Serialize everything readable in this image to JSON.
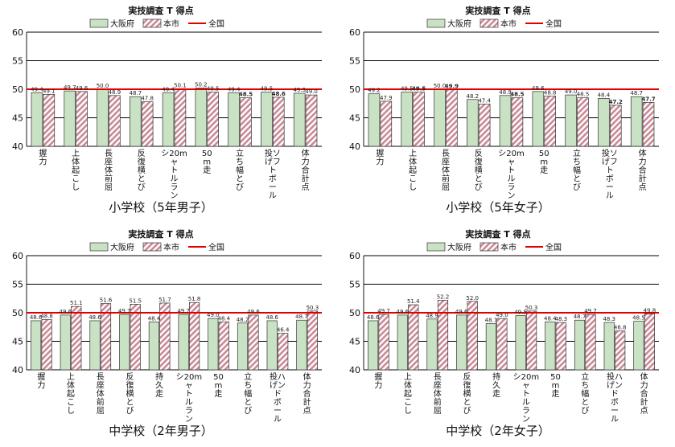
{
  "colors": {
    "osaka": "#c9e2c4",
    "city_stripe_a": "#c98a96",
    "city_stripe_b": "#ffffff",
    "national": "#e00000"
  },
  "legend": {
    "osaka": "大阪府",
    "city": "本市",
    "national": "全国"
  },
  "chart_data": [
    {
      "type": "bar",
      "title": "実技調査 T 得点",
      "caption": "小学校（5年男子）",
      "categories": [
        "握力",
        "上体起こし",
        "長座体前屈",
        "反復横とび",
        "20mシャトルラン",
        "50m走",
        "立ち幅とび",
        "ソフトボール投げ",
        "体力合計点"
      ],
      "cat_lines": [
        [
          "握",
          "力"
        ],
        [
          "上",
          "体",
          "起",
          "こ",
          "し"
        ],
        [
          "長",
          "座",
          "体",
          "前",
          "屈"
        ],
        [
          "反",
          "復",
          "横",
          "と",
          "び"
        ],
        [
          "シ20m",
          "ャ",
          "ト",
          "ル",
          "ラ",
          "ン"
        ],
        [
          "50",
          "m",
          "走"
        ],
        [
          "立",
          "ち",
          "幅",
          "と",
          "び"
        ],
        [
          "投ソ",
          "げフ",
          "ト",
          "ボ",
          "ー",
          "ル"
        ],
        [
          "体",
          "力",
          "合",
          "計",
          "点"
        ]
      ],
      "series": [
        {
          "name": "大阪府",
          "values": [
            49.4,
            49.7,
            50.0,
            48.7,
            49.4,
            50.2,
            49.4,
            49.5,
            49.3
          ]
        },
        {
          "name": "本市",
          "values": [
            49.1,
            49.6,
            48.9,
            47.8,
            50.1,
            49.5,
            48.5,
            48.6,
            49.0
          ]
        }
      ],
      "labels_osaka": [
        "49.4",
        "49.7",
        "50.0",
        "48.7",
        "49.4",
        "50.2",
        "49.4",
        "49.5",
        "49.3"
      ],
      "labels_city": [
        "49.1",
        "49.6",
        "48.9",
        "47.8",
        "50.1",
        "49.5",
        "48.5",
        "48.6",
        "49.0"
      ],
      "bold_city": [
        false,
        false,
        false,
        false,
        false,
        false,
        true,
        true,
        false
      ],
      "national": 50,
      "ylim": [
        40,
        60
      ],
      "yticks": [
        "40",
        "45",
        "50",
        "55",
        "60"
      ]
    },
    {
      "type": "bar",
      "title": "実技調査 T 得点",
      "caption": "小学校（5年女子）",
      "categories": [
        "握力",
        "上体起こし",
        "長座体前屈",
        "反復横とび",
        "20mシャトルラン",
        "50m走",
        "立ち幅とび",
        "ソフトボール投げ",
        "体力合計点"
      ],
      "cat_lines": [
        [
          "握",
          "力"
        ],
        [
          "上",
          "体",
          "起",
          "こ",
          "し"
        ],
        [
          "長",
          "座",
          "体",
          "前",
          "屈"
        ],
        [
          "反",
          "復",
          "横",
          "と",
          "び"
        ],
        [
          "シ20m",
          "ャ",
          "ト",
          "ル",
          "ラ",
          "ン"
        ],
        [
          "50",
          "m",
          "走"
        ],
        [
          "立",
          "ち",
          "幅",
          "と",
          "び"
        ],
        [
          "投ソ",
          "げフ",
          "ト",
          "ボ",
          "ー",
          "ル"
        ],
        [
          "体",
          "力",
          "合",
          "計",
          "点"
        ]
      ],
      "series": [
        {
          "name": "大阪府",
          "values": [
            49.2,
            49.5,
            50.0,
            48.2,
            48.9,
            49.6,
            49.0,
            48.4,
            48.7
          ]
        },
        {
          "name": "本市",
          "values": [
            47.9,
            49.5,
            49.9,
            47.4,
            48.5,
            48.8,
            48.5,
            47.2,
            47.7
          ]
        }
      ],
      "labels_osaka": [
        "49.2",
        "49.5",
        "50.0",
        "48.2",
        "48.9",
        "49.6",
        "49.0",
        "48.4",
        "48.7"
      ],
      "labels_city": [
        "47.9",
        "49.5",
        "49.9",
        "47.4",
        "48.5",
        "48.8",
        "48.5",
        "47.2",
        "47.7"
      ],
      "bold_city": [
        false,
        true,
        true,
        false,
        true,
        false,
        false,
        true,
        true
      ],
      "national": 50,
      "ylim": [
        40,
        60
      ],
      "yticks": [
        "40",
        "45",
        "50",
        "55",
        "60"
      ]
    },
    {
      "type": "bar",
      "title": "実技調査 T 得点",
      "caption": "中学校（2年男子）",
      "categories": [
        "握力",
        "上体起こし",
        "長座体前屈",
        "反復横とび",
        "持久走",
        "20mシャトルラン",
        "50m走",
        "立ち幅とび",
        "ハンドボール投げ",
        "体力合計点"
      ],
      "cat_lines": [
        [
          "握",
          "力"
        ],
        [
          "上",
          "体",
          "起",
          "こ",
          "し"
        ],
        [
          "長",
          "座",
          "体",
          "前",
          "屈"
        ],
        [
          "反",
          "復",
          "横",
          "と",
          "び"
        ],
        [
          "持",
          "久",
          "走"
        ],
        [
          "シ20m",
          "ャ",
          "ト",
          "ル",
          "ラ",
          "ン"
        ],
        [
          "50",
          "m",
          "走"
        ],
        [
          "立",
          "ち",
          "幅",
          "と",
          "び"
        ],
        [
          "投ハ",
          "げン",
          "ド",
          "ボ",
          "ー",
          "ル"
        ],
        [
          "体",
          "力",
          "合",
          "計",
          "点"
        ]
      ],
      "series": [
        {
          "name": "大阪府",
          "values": [
            48.6,
            49.6,
            48.6,
            49.7,
            48.4,
            49.7,
            49.0,
            48.2,
            48.6,
            48.7
          ]
        },
        {
          "name": "本市",
          "values": [
            48.8,
            51.1,
            51.6,
            51.5,
            51.7,
            51.8,
            48.4,
            49.6,
            46.4,
            50.3
          ]
        }
      ],
      "labels_osaka": [
        "48.6",
        "49.6",
        "48.6",
        "49.7",
        "48.4",
        "49.7",
        "49.0",
        "48.2",
        "48.6",
        "48.7"
      ],
      "labels_city": [
        "48.8",
        "51.1",
        "51.6",
        "51.5",
        "51.7",
        "51.8",
        "48.4",
        "49.6",
        "46.4",
        "50.3"
      ],
      "bold_city": [
        false,
        false,
        false,
        false,
        false,
        false,
        false,
        false,
        false,
        false
      ],
      "national": 50,
      "ylim": [
        40,
        60
      ],
      "yticks": [
        "40",
        "45",
        "50",
        "55",
        "60"
      ]
    },
    {
      "type": "bar",
      "title": "実技調査 T 得点",
      "caption": "中学校（2年女子）",
      "categories": [
        "握力",
        "上体起こし",
        "長座体前屈",
        "反復横とび",
        "持久走",
        "20mシャトルラン",
        "50m走",
        "立ち幅とび",
        "ハンドボール投げ",
        "体力合計点"
      ],
      "cat_lines": [
        [
          "握",
          "力"
        ],
        [
          "上",
          "体",
          "起",
          "こ",
          "し"
        ],
        [
          "長",
          "座",
          "体",
          "前",
          "屈"
        ],
        [
          "反",
          "復",
          "横",
          "と",
          "び"
        ],
        [
          "持",
          "久",
          "走"
        ],
        [
          "シ20m",
          "ャ",
          "ト",
          "ル",
          "ラ",
          "ン"
        ],
        [
          "50",
          "m",
          "走"
        ],
        [
          "立",
          "ち",
          "幅",
          "と",
          "び"
        ],
        [
          "投ハ",
          "げン",
          "ド",
          "ボ",
          "ー",
          "ル"
        ],
        [
          "体",
          "力",
          "合",
          "計",
          "点"
        ]
      ],
      "series": [
        {
          "name": "大阪府",
          "values": [
            48.6,
            49.6,
            48.9,
            49.6,
            48.1,
            49.5,
            48.4,
            48.7,
            48.3,
            48.5
          ]
        },
        {
          "name": "本市",
          "values": [
            49.7,
            51.4,
            52.2,
            52.0,
            49.0,
            50.3,
            48.3,
            49.7,
            46.8,
            49.8
          ]
        }
      ],
      "labels_osaka": [
        "48.6",
        "49.6",
        "48.9",
        "49.6",
        "48.1",
        "49.5",
        "48.4",
        "48.7",
        "48.3",
        "48.5"
      ],
      "labels_city": [
        "49.7",
        "51.4",
        "52.2",
        "52.0",
        "49.0",
        "50.3",
        "48.3",
        "49.7",
        "46.8",
        "49.8"
      ],
      "bold_city": [
        false,
        false,
        false,
        false,
        false,
        false,
        false,
        false,
        false,
        false
      ],
      "national": 50,
      "ylim": [
        40,
        60
      ],
      "yticks": [
        "40",
        "45",
        "50",
        "55",
        "60"
      ]
    }
  ]
}
